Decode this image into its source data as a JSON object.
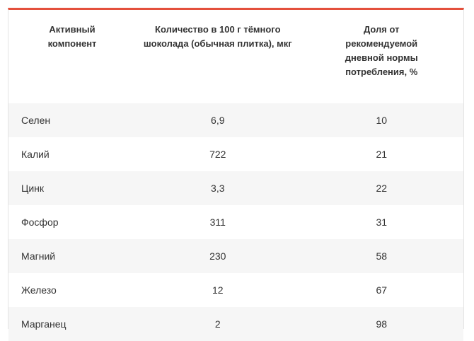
{
  "table": {
    "headers": [
      "Активный\nкомпонент",
      "Количество в 100 г тёмного\nшоколада (обычная плитка), мкг",
      "Доля от\nрекомендуемой\nдневной нормы\nпотребления, %"
    ],
    "rows": [
      {
        "component": "Селен",
        "amount": "6,9",
        "share": "10"
      },
      {
        "component": "Калий",
        "amount": "722",
        "share": "21"
      },
      {
        "component": "Цинк",
        "amount": "3,3",
        "share": "22"
      },
      {
        "component": "Фосфор",
        "amount": "311",
        "share": "31"
      },
      {
        "component": "Магний",
        "amount": "230",
        "share": "58"
      },
      {
        "component": "Железо",
        "amount": "12",
        "share": "67"
      },
      {
        "component": "Марганец",
        "amount": "2",
        "share": "98"
      }
    ]
  },
  "colors": {
    "accent": "#e4503c",
    "stripe": "#f6f6f6",
    "text": "#333333"
  }
}
